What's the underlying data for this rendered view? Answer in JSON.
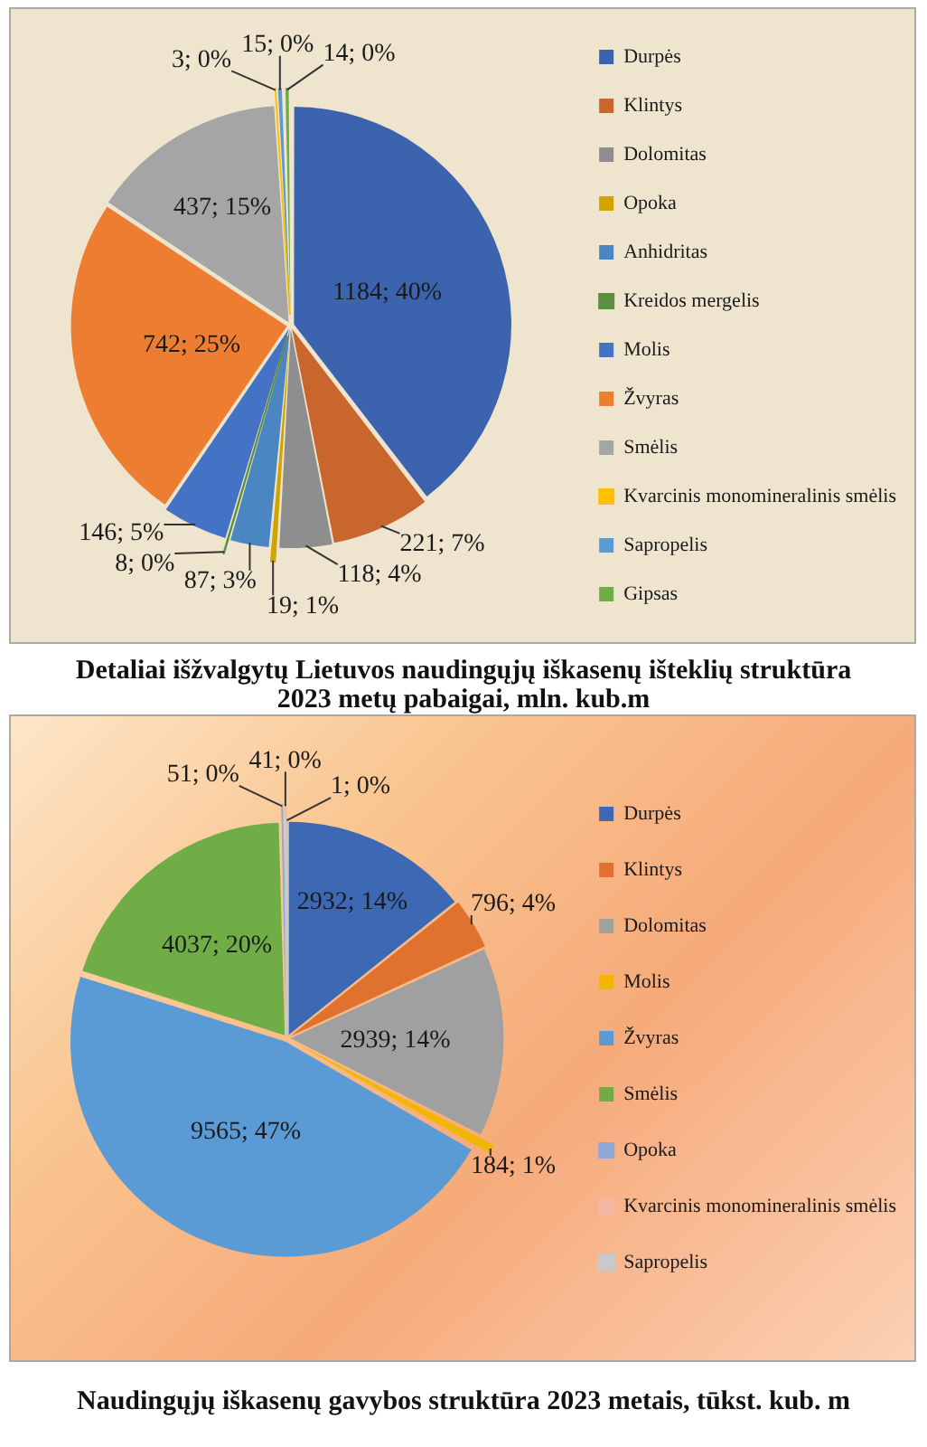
{
  "chart_data": [
    {
      "type": "pie",
      "title": "Detaliai išžvalgytų Lietuvos naudingųjų iškasenų išteklių struktūra 2023 metų pabaigai, mln. kub.m",
      "categories": [
        "Durpės",
        "Klintys",
        "Dolomitas",
        "Opoka",
        "Anhidritas",
        "Kreidos mergelis",
        "Molis",
        "Žvyras",
        "Smėlis",
        "Kvarcinis monomineralinis smėlis",
        "Sapropelis",
        "Gipsas"
      ],
      "values": [
        1184,
        221,
        118,
        19,
        87,
        8,
        146,
        742,
        437,
        3,
        15,
        14
      ],
      "colors": [
        "#3b63ae",
        "#c8662e",
        "#8e8e8e",
        "#d0a300",
        "#4a86c2",
        "#5b8f3d",
        "#4472c4",
        "#ed7d31",
        "#a5a5a5",
        "#ffc000",
        "#5b9bd5",
        "#70ad47"
      ],
      "value_labels": [
        "1184; 40%",
        "221; 7%",
        "118; 4%",
        "19; 1%",
        "87; 3%",
        "8; 0%",
        "146; 5%",
        "742; 25%",
        "437; 15%",
        "3; 0%",
        "15; 0%",
        "14; 0%"
      ],
      "legend": "right"
    },
    {
      "type": "pie",
      "title": "Naudingųjų iškasenų gavybos struktūra 2023 metais, tūkst. kub. m",
      "categories": [
        "Durpės",
        "Klintys",
        "Dolomitas",
        "Molis",
        "Žvyras",
        "Smėlis",
        "Opoka",
        "Kvarcinis monomineralinis smėlis",
        "Sapropelis"
      ],
      "values": [
        2932,
        796,
        2939,
        184,
        9565,
        4037,
        51,
        41,
        1
      ],
      "colors": [
        "#3d68b3",
        "#e0712f",
        "#a0a0a0",
        "#f2b600",
        "#5b9bd5",
        "#70ad47",
        "#8eaadb",
        "#f4b8a8",
        "#c9c9c9"
      ],
      "value_labels": [
        "2932; 14%",
        "796; 4%",
        "2939; 14%",
        "184; 1%",
        "9565; 47%",
        "4037; 20%",
        "51; 0%",
        "41; 0%",
        "1; 0%"
      ],
      "legend": "right"
    }
  ]
}
